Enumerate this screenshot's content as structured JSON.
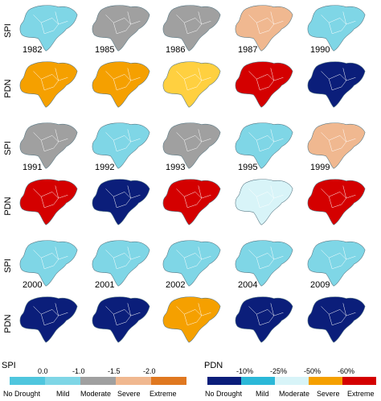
{
  "row_labels": {
    "spi": "SPI",
    "pdn": "PDN"
  },
  "groups": [
    {
      "years": [
        "1982",
        "1985",
        "1986",
        "1987",
        "1990"
      ],
      "spi_colors": [
        "#7fd6e6",
        "#a0a0a0",
        "#a0a0a0",
        "#f0b890",
        "#7fd6e6"
      ],
      "pdn_colors": [
        "#f5a000",
        "#f5a000",
        "#ffd040",
        "#d40000",
        "#0b1e7a"
      ]
    },
    {
      "years": [
        "1991",
        "1992",
        "1993",
        "1995",
        "1999"
      ],
      "spi_colors": [
        "#a0a0a0",
        "#7fd6e6",
        "#a0a0a0",
        "#7fd6e6",
        "#f0b890"
      ],
      "pdn_colors": [
        "#d40000",
        "#0b1e7a",
        "#d40000",
        "#d8f4f8",
        "#d40000"
      ]
    },
    {
      "years": [
        "2000",
        "2001",
        "2002",
        "2004",
        "2009"
      ],
      "spi_colors": [
        "#7fd6e6",
        "#7fd6e6",
        "#7fd6e6",
        "#7fd6e6",
        "#7fd6e6"
      ],
      "pdn_colors": [
        "#0b1e7a",
        "#0b1e7a",
        "#f5a000",
        "#0b1e7a",
        "#0b1e7a"
      ]
    }
  ],
  "legend_spi": {
    "title": "SPI",
    "ticks": [
      "0.0",
      "-1.0",
      "-1.5",
      "-2.0"
    ],
    "categories": [
      "No Drought",
      "Mild",
      "Moderate",
      "Severe",
      "Extreme"
    ],
    "colors": [
      "#4fc6de",
      "#7fd6e6",
      "#a0a0a0",
      "#f0b890",
      "#e07820"
    ]
  },
  "legend_pdn": {
    "title": "PDN",
    "ticks": [
      "-10%",
      "-25%",
      "-50%",
      "-60%"
    ],
    "categories": [
      "No Drought",
      "Mild",
      "Moderate",
      "Severe",
      "Extreme"
    ],
    "colors": [
      "#0b1e7a",
      "#2bb8d8",
      "#d8f4f8",
      "#f5a000",
      "#d40000"
    ]
  }
}
